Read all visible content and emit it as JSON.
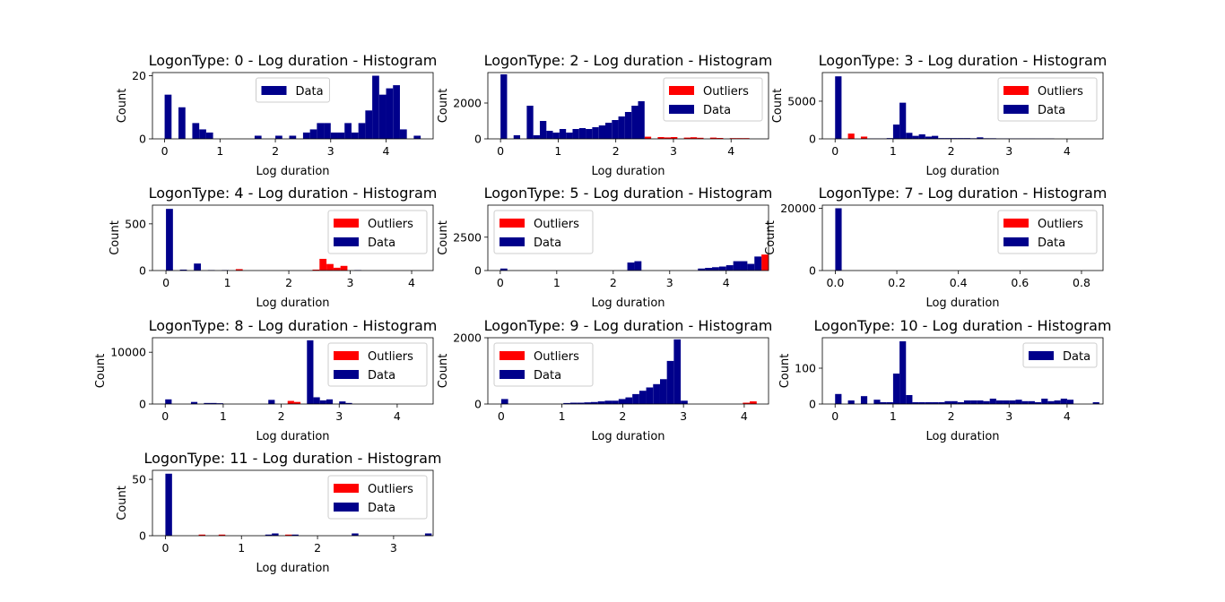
{
  "figure": {
    "background": "#ffffff"
  },
  "colors": {
    "data": "#00008b",
    "outliers": "#ff0000"
  },
  "chart_data": [
    {
      "type": "bar",
      "title": "LogonType: 0 - Log duration - Histogram",
      "xlabel": "Log duration",
      "ylabel": "Count",
      "xlim": [
        -0.22,
        4.85
      ],
      "ylim": [
        0,
        21
      ],
      "xticks": [
        0,
        1,
        2,
        3,
        4
      ],
      "xtick_labels": [
        "0",
        "1",
        "2",
        "3",
        "4"
      ],
      "yticks": [
        0,
        20
      ],
      "ytick_labels": [
        "0",
        "20"
      ],
      "legend": "upper center",
      "grid": false,
      "bin_width": 0.125,
      "series": [
        {
          "name": "Data",
          "color": "#00008b",
          "x": [
            0.0,
            0.25,
            0.5,
            0.625,
            0.75,
            1.625,
            2.0,
            2.25,
            2.5,
            2.625,
            2.75,
            2.875,
            3.0,
            3.125,
            3.25,
            3.375,
            3.5,
            3.625,
            3.75,
            3.875,
            4.0,
            4.125,
            4.25,
            4.5
          ],
          "y": [
            14,
            10,
            5,
            3,
            2,
            1,
            1,
            1,
            2,
            3,
            5,
            5,
            2,
            2,
            5,
            2,
            5,
            9,
            20,
            14,
            16,
            17,
            3,
            1
          ]
        }
      ]
    },
    {
      "type": "bar",
      "title": "LogonType: 2 - Log duration - Histogram",
      "xlabel": "Log duration",
      "ylabel": "Count",
      "xlim": [
        -0.22,
        4.65
      ],
      "ylim": [
        0,
        3700
      ],
      "xticks": [
        0,
        1,
        2,
        3,
        4
      ],
      "xtick_labels": [
        "0",
        "1",
        "2",
        "3",
        "4"
      ],
      "yticks": [
        0,
        2000
      ],
      "ytick_labels": [
        "0",
        "2000"
      ],
      "legend": "upper right",
      "grid": false,
      "bin_width": 0.1136,
      "series": [
        {
          "name": "Outliers",
          "color": "#ff0000",
          "x": [
            2.5,
            2.727,
            2.841,
            2.955,
            3.182,
            3.295,
            3.409,
            3.636,
            3.75,
            3.977,
            4.091,
            4.205
          ],
          "y": [
            120,
            100,
            80,
            100,
            70,
            90,
            60,
            70,
            50,
            40,
            40,
            40
          ]
        },
        {
          "name": "Data",
          "color": "#00008b",
          "x": [
            0.0,
            0.227,
            0.455,
            0.568,
            0.682,
            0.795,
            0.909,
            1.023,
            1.136,
            1.25,
            1.364,
            1.477,
            1.591,
            1.705,
            1.818,
            1.932,
            2.045,
            2.159,
            2.273,
            2.386
          ],
          "y": [
            3600,
            200,
            1850,
            200,
            1000,
            450,
            350,
            550,
            350,
            550,
            600,
            550,
            650,
            750,
            900,
            1050,
            1250,
            1500,
            1850,
            2100
          ]
        }
      ]
    },
    {
      "type": "bar",
      "title": "LogonType: 3 - Log duration - Histogram",
      "xlabel": "Log duration",
      "ylabel": "Count",
      "xlim": [
        -0.22,
        4.62
      ],
      "ylim": [
        0,
        8800
      ],
      "xticks": [
        0,
        1,
        2,
        3,
        4
      ],
      "xtick_labels": [
        "0",
        "1",
        "2",
        "3",
        "4"
      ],
      "yticks": [
        0,
        5000
      ],
      "ytick_labels": [
        "0",
        "5000"
      ],
      "legend": "upper right",
      "grid": false,
      "bin_width": 0.111,
      "series": [
        {
          "name": "Outliers",
          "color": "#ff0000",
          "x": [
            0.222,
            0.444
          ],
          "y": [
            700,
            300
          ]
        },
        {
          "name": "Data",
          "color": "#00008b",
          "x": [
            0.0,
            0.556,
            0.667,
            0.778,
            0.889,
            1.0,
            1.111,
            1.222,
            1.333,
            1.444,
            1.556,
            1.667,
            1.778,
            1.889,
            2.0,
            2.111,
            2.222,
            2.333,
            2.444,
            2.556,
            2.667,
            2.778,
            2.889,
            3.0,
            3.111,
            3.222,
            3.333,
            3.444,
            3.556,
            3.667
          ],
          "y": [
            8300,
            50,
            50,
            50,
            100,
            1900,
            4800,
            800,
            400,
            600,
            300,
            400,
            100,
            100,
            100,
            100,
            100,
            80,
            200,
            80,
            80,
            60,
            60,
            60,
            60,
            60,
            60,
            50,
            50,
            50
          ]
        }
      ]
    },
    {
      "type": "bar",
      "title": "LogonType: 4 - Log duration - Histogram",
      "xlabel": "Log duration",
      "ylabel": "Count",
      "xlim": [
        -0.22,
        4.35
      ],
      "ylim": [
        0,
        700
      ],
      "xticks": [
        0,
        1,
        2,
        3,
        4
      ],
      "xtick_labels": [
        "0",
        "1",
        "2",
        "3",
        "4"
      ],
      "yticks": [
        0,
        500
      ],
      "ytick_labels": [
        "0",
        "500"
      ],
      "legend": "upper right",
      "grid": false,
      "bin_width": 0.1136,
      "series": [
        {
          "name": "Outliers",
          "color": "#ff0000",
          "x": [
            1.136,
            2.386,
            2.5,
            2.614,
            2.727,
            2.841
          ],
          "y": [
            15,
            10,
            125,
            70,
            30,
            50
          ]
        },
        {
          "name": "Data",
          "color": "#00008b",
          "x": [
            0.0,
            0.227,
            0.455,
            0.682,
            0.909,
            3.068
          ],
          "y": [
            660,
            10,
            75,
            5,
            5,
            5
          ]
        }
      ]
    },
    {
      "type": "bar",
      "title": "LogonType: 5 - Log duration - Histogram",
      "xlabel": "Log duration",
      "ylabel": "Count",
      "xlim": [
        -0.22,
        4.75
      ],
      "ylim": [
        0,
        4900
      ],
      "xticks": [
        0,
        1,
        2,
        3,
        4
      ],
      "xtick_labels": [
        "0",
        "1",
        "2",
        "3",
        "4"
      ],
      "yticks": [
        0,
        2500
      ],
      "ytick_labels": [
        "0",
        "2500"
      ],
      "legend": "upper left",
      "grid": false,
      "bin_width": 0.125,
      "series": [
        {
          "name": "Outliers",
          "color": "#ff0000",
          "x": [
            4.625
          ],
          "y": [
            1200
          ]
        },
        {
          "name": "Data",
          "color": "#00008b",
          "x": [
            0.0,
            2.25,
            2.375,
            3.5,
            3.625,
            3.75,
            3.875,
            4.0,
            4.125,
            4.25,
            4.375,
            4.5
          ],
          "y": [
            150,
            600,
            700,
            150,
            200,
            250,
            300,
            400,
            700,
            700,
            500,
            1050
          ]
        }
      ]
    },
    {
      "type": "bar",
      "title": "LogonType: 7 - Log duration - Histogram",
      "xlabel": "Log duration",
      "ylabel": "Count",
      "xlim": [
        -0.042,
        0.87
      ],
      "ylim": [
        0,
        21000
      ],
      "xticks": [
        0.0,
        0.2,
        0.4,
        0.6,
        0.8
      ],
      "xtick_labels": [
        "0.0",
        "0.2",
        "0.4",
        "0.6",
        "0.8"
      ],
      "yticks": [
        0,
        20000
      ],
      "ytick_labels": [
        "0",
        "20000"
      ],
      "legend": "upper right",
      "grid": false,
      "bin_width": 0.0208,
      "series": [
        {
          "name": "Outliers",
          "color": "#ff0000",
          "x": [],
          "y": []
        },
        {
          "name": "Data",
          "color": "#00008b",
          "x": [
            0.0
          ],
          "y": [
            20000
          ]
        }
      ]
    },
    {
      "type": "bar",
      "title": "LogonType: 8 - Log duration - Histogram",
      "xlabel": "Log duration",
      "ylabel": "Count",
      "xlim": [
        -0.22,
        4.62
      ],
      "ylim": [
        0,
        12800
      ],
      "xticks": [
        0,
        1,
        2,
        3,
        4
      ],
      "xtick_labels": [
        "0",
        "1",
        "2",
        "3",
        "4"
      ],
      "yticks": [
        0,
        10000
      ],
      "ytick_labels": [
        "0",
        "10000"
      ],
      "legend": "upper right",
      "grid": false,
      "bin_width": 0.111,
      "series": [
        {
          "name": "Outliers",
          "color": "#ff0000",
          "x": [
            2.111,
            2.222
          ],
          "y": [
            600,
            400
          ]
        },
        {
          "name": "Data",
          "color": "#00008b",
          "x": [
            0.0,
            0.444,
            0.667,
            0.778,
            0.889,
            1.778,
            2.444,
            2.556,
            2.667,
            2.778,
            3.0,
            3.111
          ],
          "y": [
            900,
            400,
            200,
            200,
            150,
            800,
            12300,
            1300,
            700,
            900,
            500,
            200
          ]
        }
      ]
    },
    {
      "type": "bar",
      "title": "LogonType: 9 - Log duration - Histogram",
      "xlabel": "Log duration",
      "ylabel": "Count",
      "xlim": [
        -0.22,
        4.4
      ],
      "ylim": [
        0,
        2000
      ],
      "xticks": [
        0,
        1,
        2,
        3,
        4
      ],
      "xtick_labels": [
        "0",
        "1",
        "2",
        "3",
        "4"
      ],
      "yticks": [
        0,
        2000
      ],
      "ytick_labels": [
        "0",
        "2000"
      ],
      "legend": "upper left",
      "grid": false,
      "bin_width": 0.1136,
      "series": [
        {
          "name": "Outliers",
          "color": "#ff0000",
          "x": [
            3.977,
            4.091
          ],
          "y": [
            40,
            80
          ]
        },
        {
          "name": "Data",
          "color": "#00008b",
          "x": [
            0.0,
            1.023,
            1.136,
            1.25,
            1.364,
            1.477,
            1.591,
            1.705,
            1.818,
            1.932,
            2.045,
            2.159,
            2.273,
            2.386,
            2.5,
            2.614,
            2.727,
            2.841,
            2.955
          ],
          "y": [
            150,
            30,
            40,
            40,
            50,
            60,
            80,
            100,
            100,
            150,
            200,
            300,
            400,
            500,
            600,
            750,
            1300,
            1950,
            100
          ]
        }
      ]
    },
    {
      "type": "bar",
      "title": "LogonType: 10 - Log duration - Histogram",
      "xlabel": "Log duration",
      "ylabel": "Count",
      "xlim": [
        -0.22,
        4.62
      ],
      "ylim": [
        0,
        185
      ],
      "xticks": [
        0,
        1,
        2,
        3,
        4
      ],
      "xtick_labels": [
        "0",
        "1",
        "2",
        "3",
        "4"
      ],
      "yticks": [
        0,
        100
      ],
      "ytick_labels": [
        "0",
        "100"
      ],
      "legend": "upper right",
      "grid": false,
      "bin_width": 0.111,
      "series": [
        {
          "name": "Data",
          "color": "#00008b",
          "x": [
            0.0,
            0.222,
            0.444,
            0.667,
            0.778,
            0.889,
            1.0,
            1.111,
            1.222,
            1.333,
            1.444,
            1.556,
            1.667,
            1.778,
            1.889,
            2.0,
            2.111,
            2.222,
            2.333,
            2.444,
            2.556,
            2.667,
            2.778,
            2.889,
            3.0,
            3.111,
            3.222,
            3.333,
            3.444,
            3.556,
            3.667,
            3.778,
            3.889,
            4.0,
            4.444
          ],
          "y": [
            28,
            10,
            22,
            12,
            5,
            5,
            85,
            175,
            25,
            5,
            5,
            5,
            5,
            5,
            8,
            8,
            5,
            10,
            10,
            10,
            8,
            15,
            10,
            10,
            10,
            12,
            8,
            8,
            5,
            15,
            8,
            10,
            15,
            12,
            5
          ]
        }
      ]
    },
    {
      "type": "bar",
      "title": "LogonType: 11 - Log duration - Histogram",
      "xlabel": "Log duration",
      "ylabel": "Count",
      "xlim": [
        -0.17,
        3.52
      ],
      "ylim": [
        0,
        58
      ],
      "xticks": [
        0,
        1,
        2,
        3
      ],
      "xtick_labels": [
        "0",
        "1",
        "2",
        "3"
      ],
      "yticks": [
        0,
        50
      ],
      "ytick_labels": [
        "0",
        "50"
      ],
      "legend": "upper right",
      "grid": false,
      "bin_width": 0.0875,
      "series": [
        {
          "name": "Outliers",
          "color": "#ff0000",
          "x": [
            0.438,
            0.7,
            1.575
          ],
          "y": [
            1,
            1,
            1
          ]
        },
        {
          "name": "Data",
          "color": "#00008b",
          "x": [
            0.0,
            1.313,
            1.4,
            1.663,
            2.45,
            3.413
          ],
          "y": [
            55,
            1,
            2,
            1,
            2,
            2
          ]
        }
      ]
    }
  ]
}
